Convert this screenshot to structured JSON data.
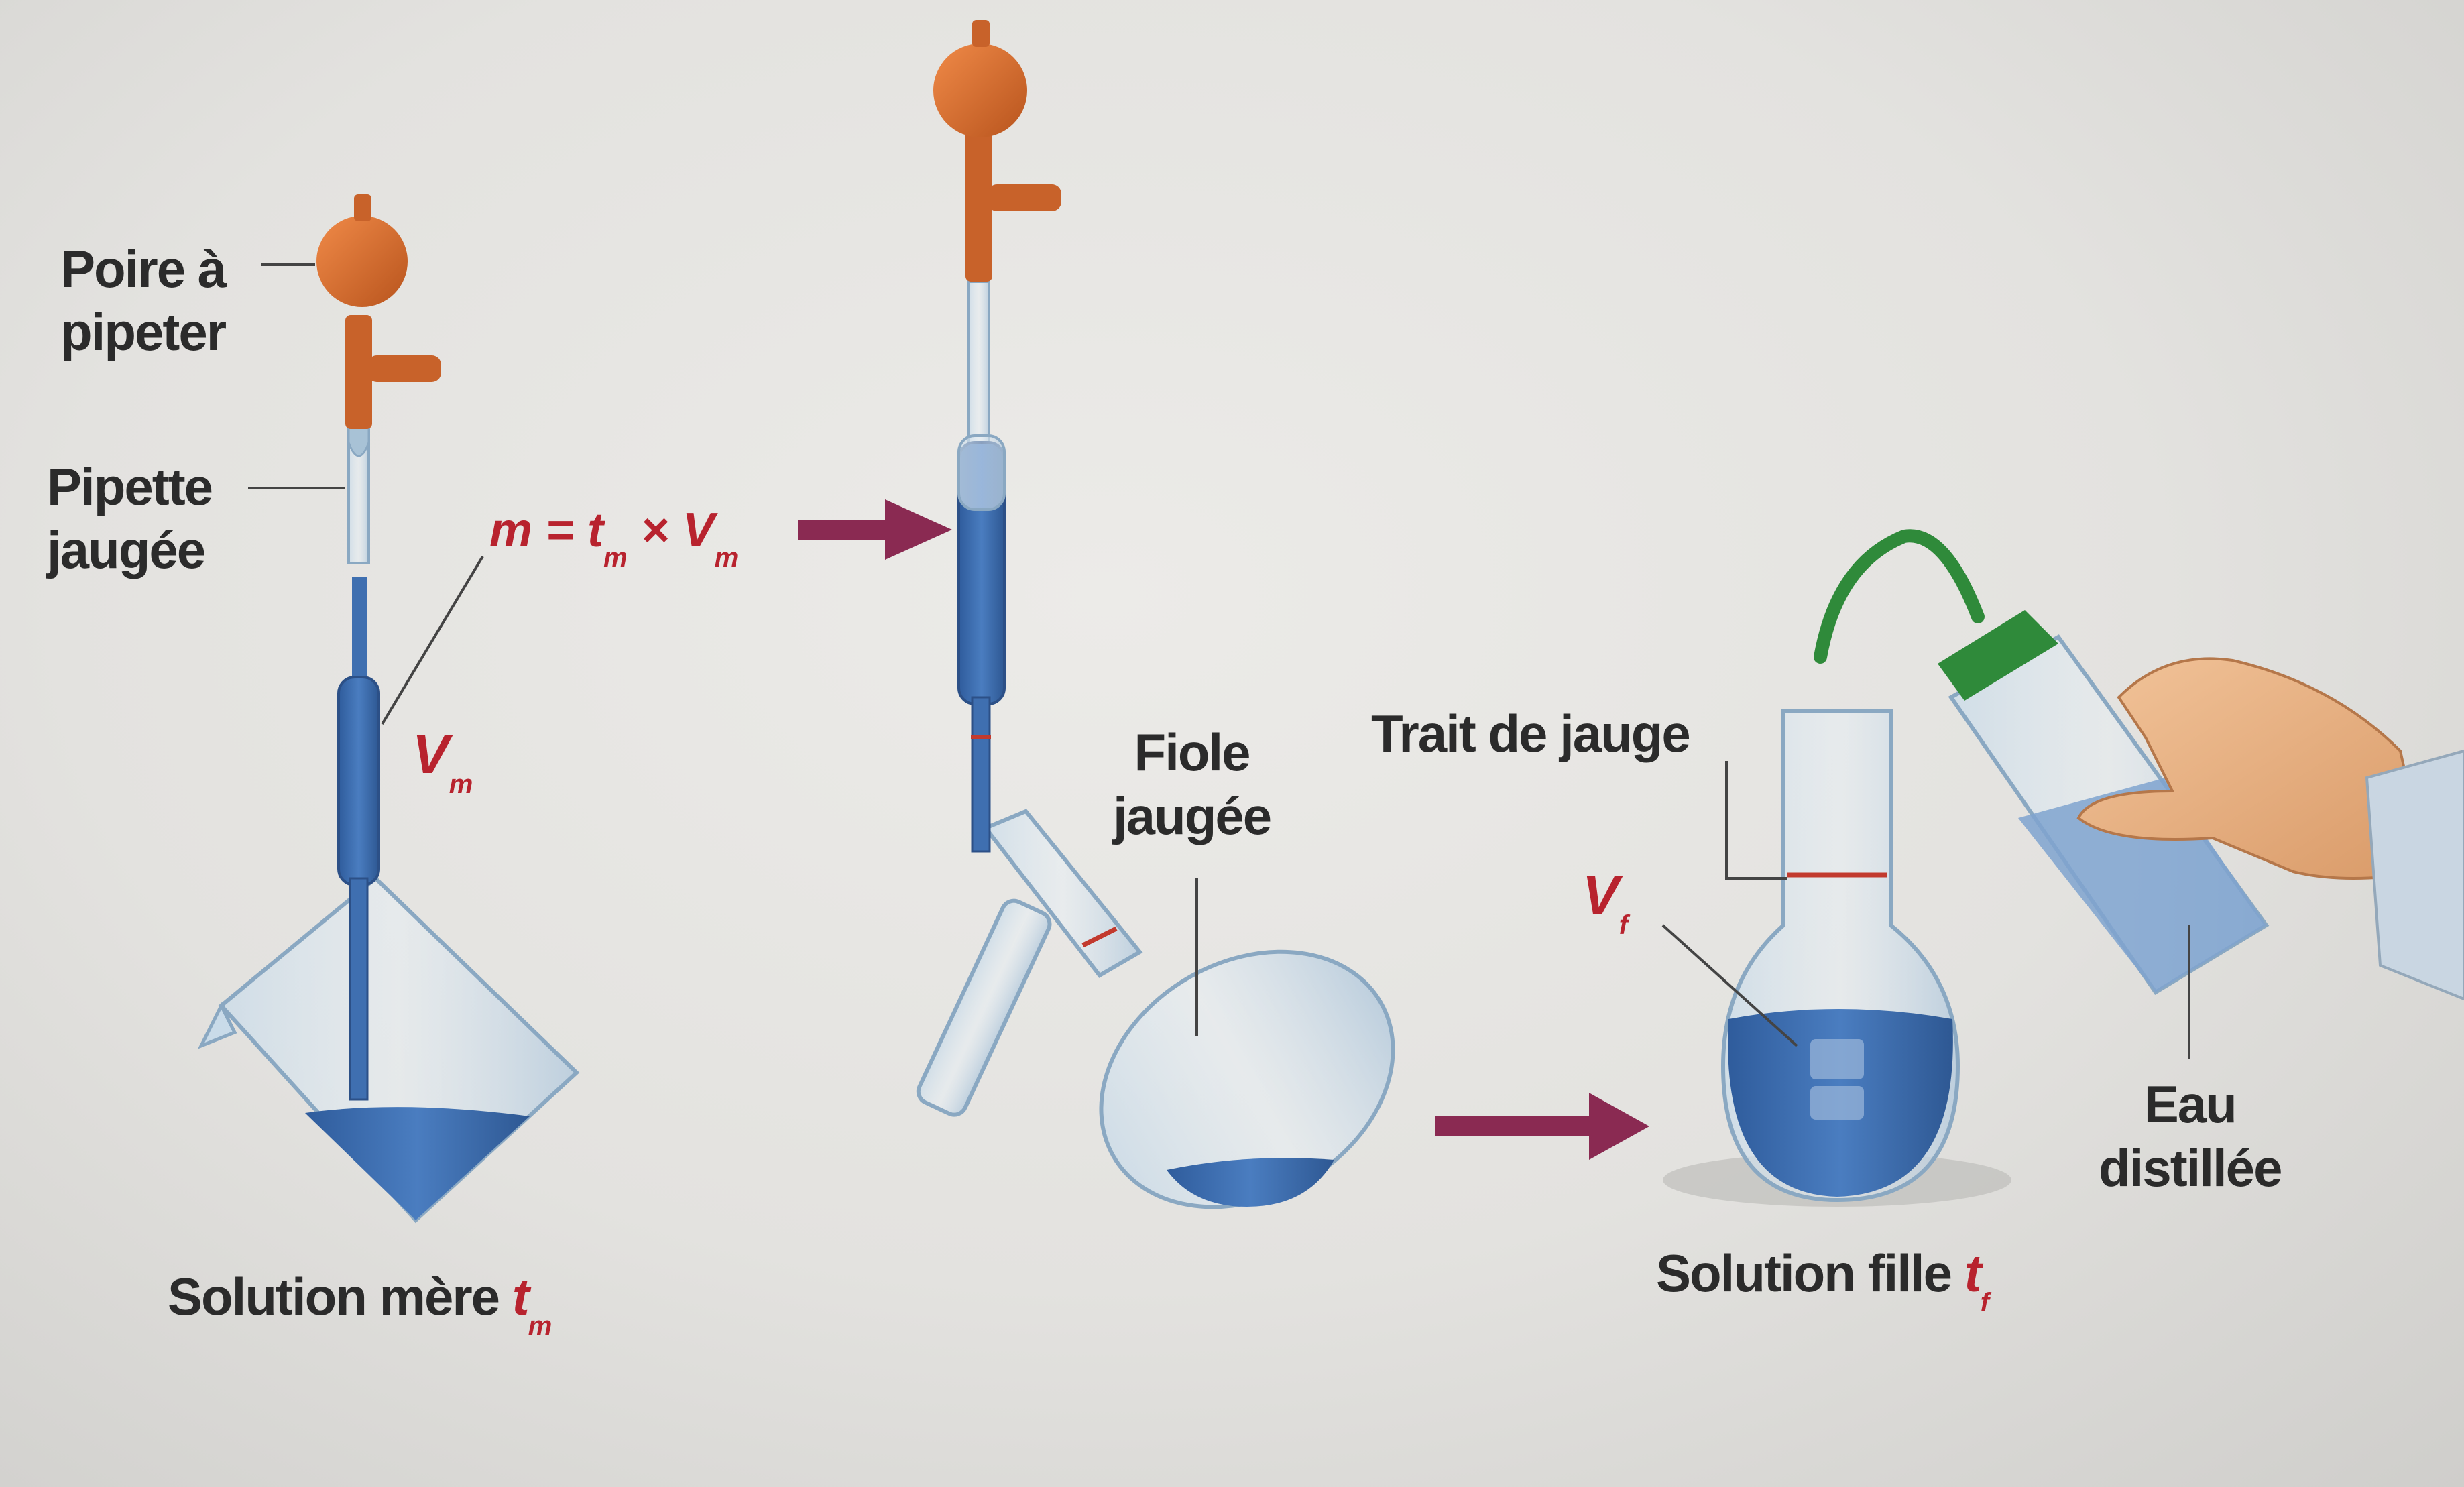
{
  "labels": {
    "poire_line1": "Poire à",
    "poire_line2": "pipeter",
    "pipette_line1": "Pipette",
    "pipette_line2": "jaugée",
    "fiole_line1": "Fiole",
    "fiole_line2": "jaugée",
    "trait_de_jauge": "Trait de jauge",
    "eau_line1": "Eau",
    "eau_line2": "distillée",
    "solution_mere": "Solution mère",
    "solution_fille": "Solution fille"
  },
  "formula": {
    "lhs": "m",
    "equals": " = ",
    "t": "t",
    "t_sub": "m",
    "times": " × ",
    "v": "V",
    "v_sub": "m"
  },
  "variables": {
    "vm": "V",
    "vm_sub": "m",
    "vf": "V",
    "vf_sub": "f",
    "tm": "t",
    "tm_sub": "m",
    "tf": "t",
    "tf_sub": "f"
  },
  "colors": {
    "liquid": "#3f6fb0",
    "bulb": "#d8692c",
    "arrow": "#8a2a52",
    "red_text": "#b8232e",
    "bottle_cap": "#2f8a3a"
  }
}
